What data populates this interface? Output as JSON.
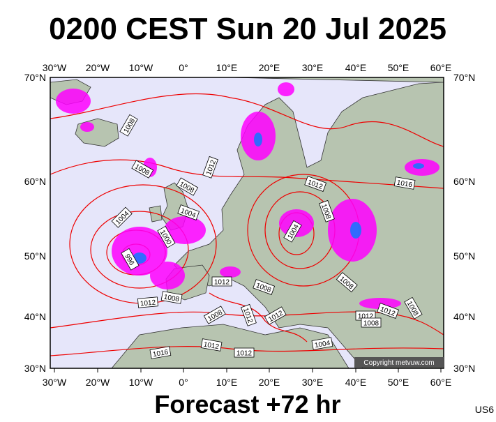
{
  "title": "0200 CEST Sun 20 Jul 2025",
  "footer": "Forecast +72 hr",
  "region": "US6",
  "copyright": "Copyright metvuw.com",
  "lon_labels": [
    "30°W",
    "20°W",
    "10°W",
    "0°",
    "10°E",
    "20°E",
    "30°E",
    "40°E",
    "50°E",
    "60°E"
  ],
  "lat_labels": [
    "70°N",
    "60°N",
    "50°N",
    "40°N",
    "30°N"
  ],
  "isobar_labels": [
    "1008",
    "1008",
    "1008",
    "1012",
    "1004",
    "1004",
    "1000",
    "996",
    "1012",
    "1016",
    "1008",
    "1004",
    "1008",
    "1012",
    "1008",
    "1008",
    "1012",
    "1008",
    "1012",
    "1012",
    "1012",
    "1008",
    "1012",
    "1008",
    "1004",
    "1012",
    "1012",
    "1016"
  ]
}
